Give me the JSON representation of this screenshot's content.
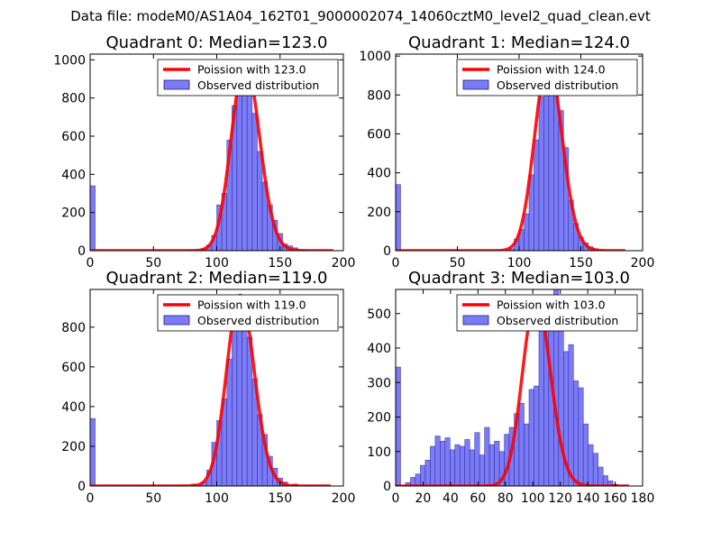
{
  "suptitle": "Data file: modeM0/AS1A04_162T01_9000002074_14060cztM0_level2_quad_clean.evt",
  "colors": {
    "poisson": "#ff0000",
    "bars": "#7b7bf6",
    "bar_edge": "#1a1a8a"
  },
  "chart_data": [
    {
      "type": "bar",
      "title": "Quadrant 0: Median=123.0",
      "xlim": [
        0,
        200
      ],
      "ylim": [
        0,
        1030
      ],
      "xticks": [
        0,
        50,
        100,
        150,
        200
      ],
      "yticks": [
        0,
        200,
        400,
        600,
        800,
        1000
      ],
      "legend": {
        "position": "top-right",
        "poisson": "Poission with 123.0",
        "observed": "Observed distribution"
      },
      "bin_width": 4,
      "bins": [
        [
          0,
          340
        ],
        [
          76,
          5
        ],
        [
          88,
          10
        ],
        [
          92,
          30
        ],
        [
          96,
          80
        ],
        [
          100,
          240
        ],
        [
          104,
          300
        ],
        [
          108,
          580
        ],
        [
          112,
          760
        ],
        [
          116,
          900
        ],
        [
          120,
          1000
        ],
        [
          124,
          860
        ],
        [
          128,
          720
        ],
        [
          132,
          520
        ],
        [
          136,
          360
        ],
        [
          140,
          240
        ],
        [
          144,
          160
        ],
        [
          148,
          90
        ],
        [
          152,
          35
        ],
        [
          156,
          25
        ],
        [
          160,
          15
        ],
        [
          168,
          5
        ]
      ],
      "poisson_mean": 123.0,
      "poisson_scale": 990,
      "poisson_x": [
        0,
        192
      ]
    },
    {
      "type": "bar",
      "title": "Quadrant 1: Median=124.0",
      "xlim": [
        0,
        200
      ],
      "ylim": [
        0,
        1010
      ],
      "xticks": [
        0,
        50,
        100,
        150,
        200
      ],
      "yticks": [
        0,
        200,
        400,
        600,
        800,
        1000
      ],
      "legend": {
        "position": "top-right",
        "poisson": "Poission with 124.0",
        "observed": "Observed distribution"
      },
      "bin_width": 4,
      "bins": [
        [
          0,
          340
        ],
        [
          92,
          10
        ],
        [
          96,
          60
        ],
        [
          100,
          110
        ],
        [
          104,
          190
        ],
        [
          108,
          390
        ],
        [
          112,
          570
        ],
        [
          116,
          790
        ],
        [
          120,
          920
        ],
        [
          124,
          980
        ],
        [
          128,
          820
        ],
        [
          132,
          720
        ],
        [
          136,
          530
        ],
        [
          140,
          260
        ],
        [
          144,
          140
        ],
        [
          148,
          70
        ],
        [
          152,
          40
        ],
        [
          156,
          20
        ],
        [
          160,
          10
        ]
      ],
      "poisson_mean": 124.0,
      "poisson_scale": 970,
      "poisson_x": [
        0,
        186
      ]
    },
    {
      "type": "bar",
      "title": "Quadrant 2: Median=119.0",
      "xlim": [
        0,
        200
      ],
      "ylim": [
        0,
        990
      ],
      "xticks": [
        0,
        50,
        100,
        150,
        200
      ],
      "yticks": [
        0,
        200,
        400,
        600,
        800
      ],
      "legend": {
        "position": "top-right",
        "poisson": "Poission with 119.0",
        "observed": "Observed distribution"
      },
      "bin_width": 4,
      "bins": [
        [
          0,
          340
        ],
        [
          72,
          5
        ],
        [
          80,
          10
        ],
        [
          88,
          20
        ],
        [
          92,
          80
        ],
        [
          96,
          220
        ],
        [
          100,
          330
        ],
        [
          104,
          440
        ],
        [
          108,
          640
        ],
        [
          112,
          820
        ],
        [
          116,
          920
        ],
        [
          120,
          850
        ],
        [
          124,
          750
        ],
        [
          128,
          540
        ],
        [
          132,
          360
        ],
        [
          136,
          260
        ],
        [
          140,
          150
        ],
        [
          144,
          90
        ],
        [
          148,
          40
        ],
        [
          152,
          20
        ],
        [
          160,
          10
        ]
      ],
      "poisson_mean": 119.0,
      "poisson_scale": 960,
      "poisson_x": [
        0,
        190
      ]
    },
    {
      "type": "bar",
      "title": "Quadrant 3: Median=103.0",
      "xlim": [
        0,
        180
      ],
      "ylim": [
        0,
        570
      ],
      "xticks": [
        0,
        20,
        40,
        60,
        80,
        100,
        120,
        140,
        160,
        180
      ],
      "yticks": [
        0,
        100,
        200,
        300,
        400,
        500
      ],
      "legend": {
        "position": "top-right",
        "poisson": "Poission with 103.0",
        "observed": "Observed distribution"
      },
      "bin_width": 3.6,
      "bins": [
        [
          0,
          345
        ],
        [
          7.2,
          10
        ],
        [
          10.8,
          25
        ],
        [
          14.4,
          35
        ],
        [
          18,
          60
        ],
        [
          21.6,
          75
        ],
        [
          25.2,
          115
        ],
        [
          28.8,
          145
        ],
        [
          32.4,
          130
        ],
        [
          36,
          140
        ],
        [
          39.6,
          105
        ],
        [
          43.2,
          120
        ],
        [
          46.8,
          115
        ],
        [
          50.4,
          135
        ],
        [
          54,
          105
        ],
        [
          57.6,
          155
        ],
        [
          61.2,
          90
        ],
        [
          64.8,
          170
        ],
        [
          68.4,
          120
        ],
        [
          72,
          130
        ],
        [
          75.6,
          100
        ],
        [
          79.2,
          150
        ],
        [
          82.8,
          170
        ],
        [
          86.4,
          210
        ],
        [
          90,
          240
        ],
        [
          93.6,
          180
        ],
        [
          97.2,
          280
        ],
        [
          100.8,
          290
        ],
        [
          104.4,
          550
        ],
        [
          108,
          480
        ],
        [
          111.6,
          465
        ],
        [
          115.2,
          570
        ],
        [
          118.8,
          520
        ],
        [
          122.4,
          390
        ],
        [
          126,
          410
        ],
        [
          129.6,
          305
        ],
        [
          133.2,
          285
        ],
        [
          136.8,
          180
        ],
        [
          140.4,
          120
        ],
        [
          144,
          95
        ],
        [
          147.6,
          55
        ],
        [
          151.2,
          30
        ],
        [
          154.8,
          15
        ],
        [
          158.4,
          5
        ]
      ],
      "poisson_mean": 103.0,
      "poisson_scale": 545,
      "poisson_x": [
        0,
        170
      ]
    }
  ]
}
